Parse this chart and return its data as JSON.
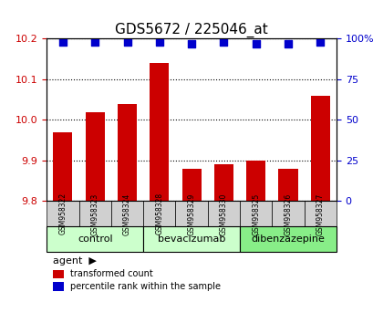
{
  "title": "GDS5672 / 225046_at",
  "samples": [
    "GSM958322",
    "GSM958323",
    "GSM958324",
    "GSM958328",
    "GSM958329",
    "GSM958330",
    "GSM958325",
    "GSM958326",
    "GSM958327"
  ],
  "bar_values": [
    9.97,
    10.02,
    10.04,
    10.14,
    9.88,
    9.89,
    9.9,
    9.88,
    10.06
  ],
  "percentile_values": [
    98,
    98,
    98,
    98,
    97,
    98,
    97,
    97,
    98
  ],
  "ylim_left": [
    9.8,
    10.2
  ],
  "ylim_right": [
    0,
    100
  ],
  "yticks_left": [
    9.8,
    9.9,
    10.0,
    10.1,
    10.2
  ],
  "yticks_right": [
    0,
    25,
    50,
    75,
    100
  ],
  "bar_color": "#cc0000",
  "dot_color": "#0000cc",
  "groups": [
    {
      "label": "control",
      "indices": [
        0,
        1,
        2
      ],
      "color": "#ccffcc"
    },
    {
      "label": "bevacizumab",
      "indices": [
        3,
        4,
        5
      ],
      "color": "#ccffcc"
    },
    {
      "label": "dibenzazepine",
      "indices": [
        6,
        7,
        8
      ],
      "color": "#66ff66"
    }
  ],
  "agent_label": "agent",
  "legend_bar_label": "transformed count",
  "legend_dot_label": "percentile rank within the sample",
  "grid_color": "#000000",
  "tick_label_color_left": "#cc0000",
  "tick_label_color_right": "#0000cc"
}
